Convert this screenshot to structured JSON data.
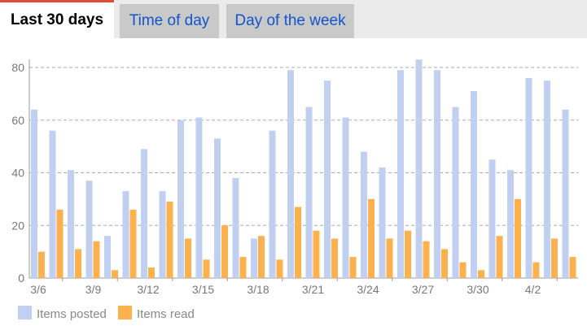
{
  "tabs": [
    {
      "label": "Last 30 days",
      "active": true
    },
    {
      "label": "Time of day",
      "active": false
    },
    {
      "label": "Day of the week",
      "active": false
    }
  ],
  "colors": {
    "accent": "#dd4b39",
    "tab_link": "#1155cc",
    "posted": "#c1cff1",
    "read": "#fbb24e",
    "grid": "#aaaaaa"
  },
  "chart_data": {
    "type": "bar",
    "categories": [
      "3/6",
      "3/7",
      "3/8",
      "3/9",
      "3/10",
      "3/11",
      "3/12",
      "3/13",
      "3/14",
      "3/15",
      "3/16",
      "3/17",
      "3/18",
      "3/19",
      "3/20",
      "3/21",
      "3/22",
      "3/23",
      "3/24",
      "3/25",
      "3/26",
      "3/27",
      "3/28",
      "3/29",
      "3/30",
      "3/31",
      "4/1",
      "4/2",
      "4/3",
      "4/4"
    ],
    "x_tick_labels": [
      "3/6",
      "3/9",
      "3/12",
      "3/15",
      "3/18",
      "3/21",
      "3/24",
      "3/27",
      "3/30",
      "4/2"
    ],
    "series": [
      {
        "name": "Items posted",
        "color": "#c1cff1",
        "values": [
          64,
          56,
          41,
          37,
          16,
          33,
          49,
          33,
          60,
          61,
          53,
          38,
          15,
          56,
          79,
          65,
          75,
          61,
          48,
          42,
          79,
          83,
          79,
          65,
          71,
          45,
          41,
          76,
          75,
          64
        ]
      },
      {
        "name": "Items read",
        "color": "#fbb24e",
        "values": [
          10,
          26,
          11,
          14,
          3,
          26,
          4,
          29,
          15,
          7,
          20,
          8,
          16,
          7,
          27,
          18,
          15,
          8,
          30,
          15,
          18,
          14,
          11,
          6,
          3,
          16,
          30,
          6,
          15,
          8
        ]
      }
    ],
    "ylim": [
      0,
      85
    ],
    "yticks": [
      0,
      20,
      40,
      60,
      80
    ],
    "grid": true,
    "legend_position": "bottom-left"
  }
}
